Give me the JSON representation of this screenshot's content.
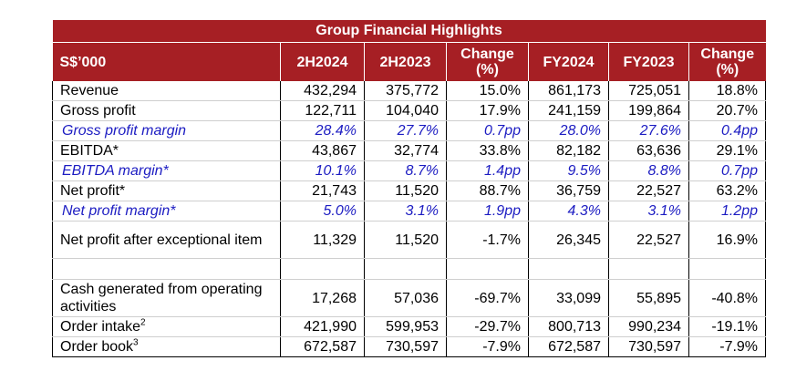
{
  "table": {
    "title": "Group Financial Highlights",
    "headers": [
      "S$’000",
      "2H2024",
      "2H2023",
      "Change (%)",
      "FY2024",
      "FY2023",
      "Change (%)"
    ],
    "rows": [
      {
        "label": "Revenue",
        "sup": "",
        "italic": false,
        "values": [
          "432,294",
          "375,772",
          "15.0%",
          "861,173",
          "725,051",
          "18.8%"
        ]
      },
      {
        "label": "Gross profit",
        "sup": "",
        "italic": false,
        "values": [
          "122,711",
          "104,040",
          "17.9%",
          "241,159",
          "199,864",
          "20.7%"
        ]
      },
      {
        "label": "Gross profit margin",
        "sup": "",
        "italic": true,
        "values": [
          "28.4%",
          "27.7%",
          "0.7pp",
          "28.0%",
          "27.6%",
          "0.4pp"
        ]
      },
      {
        "label": "EBITDA*",
        "sup": "",
        "italic": false,
        "values": [
          "43,867",
          "32,774",
          "33.8%",
          "82,182",
          "63,636",
          "29.1%"
        ]
      },
      {
        "label": "EBITDA margin*",
        "sup": "",
        "italic": true,
        "values": [
          "10.1%",
          "8.7%",
          "1.4pp",
          "9.5%",
          "8.8%",
          "0.7pp"
        ]
      },
      {
        "label": "Net profit*",
        "sup": "",
        "italic": false,
        "values": [
          "21,743",
          "11,520",
          "88.7%",
          "36,759",
          "22,527",
          "63.2%"
        ]
      },
      {
        "label": "Net profit margin*",
        "sup": "",
        "italic": true,
        "values": [
          "5.0%",
          "3.1%",
          "1.9pp",
          "4.3%",
          "3.1%",
          "1.2pp"
        ]
      },
      {
        "label": "Net profit after exceptional item",
        "sup": "",
        "italic": false,
        "tall": true,
        "values": [
          "11,329",
          "11,520",
          "-1.7%",
          "26,345",
          "22,527",
          "16.9%"
        ]
      },
      {
        "spacer": true
      },
      {
        "label": "Cash generated from operating activities",
        "sup": "",
        "italic": false,
        "tall": true,
        "values": [
          "17,268",
          "57,036",
          "-69.7%",
          "33,099",
          "55,895",
          "-40.8%"
        ]
      },
      {
        "label": "Order intake",
        "sup": "2",
        "italic": false,
        "values": [
          "421,990",
          "599,953",
          "-29.7%",
          "800,713",
          "990,234",
          "-19.1%"
        ]
      },
      {
        "label": "Order book",
        "sup": "3",
        "italic": false,
        "values": [
          "672,587",
          "730,597",
          "-7.9%",
          "672,587",
          "730,597",
          "-7.9%"
        ]
      }
    ]
  }
}
